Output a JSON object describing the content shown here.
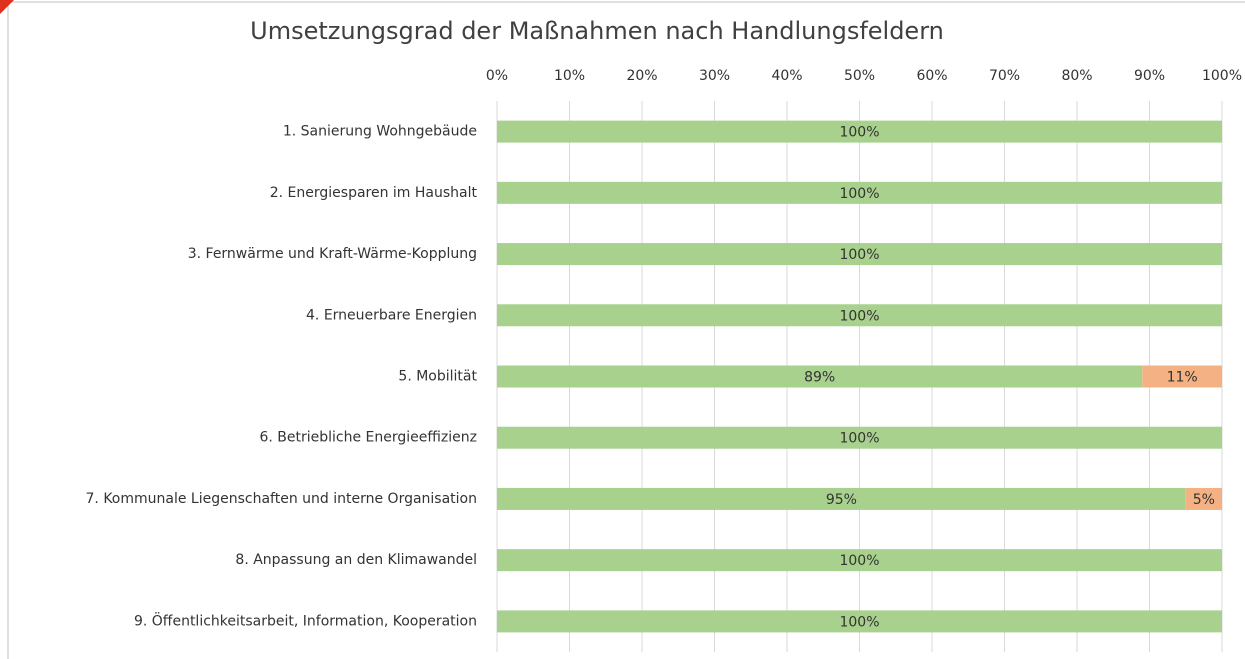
{
  "chart_data": {
    "type": "stacked_bar_horizontal",
    "title": "Umsetzungsgrad der Maßnahmen nach Handlungsfeldern",
    "categories": [
      "1. Sanierung Wohngebäude",
      "2. Energiesparen im Haushalt",
      "3. Fernwärme und Kraft-Wärme-Kopplung",
      "4. Erneuerbare Energien",
      "5. Mobilität",
      "6. Betriebliche Energieeffizienz",
      "7. Kommunale Liegenschaften und interne Organisation",
      "8. Anpassung an den Klimawandel",
      "9. Öffentlichkeitsarbeit, Information, Kooperation"
    ],
    "series": [
      {
        "color": "#a9d18e",
        "values": [
          100,
          100,
          100,
          100,
          89,
          100,
          95,
          100,
          100
        ],
        "value_labels": [
          "100%",
          "100%",
          "100%",
          "100%",
          "89%",
          "100%",
          "95%",
          "100%",
          "100%"
        ]
      },
      {
        "color": "#f4b183",
        "values": [
          null,
          null,
          null,
          null,
          11,
          null,
          5,
          null,
          null
        ],
        "value_labels": [
          null,
          null,
          null,
          null,
          "11%",
          null,
          "5%",
          null,
          null
        ]
      }
    ],
    "xlim": [
      0,
      100
    ],
    "xticks": [
      {
        "value": 0,
        "label": "0%"
      },
      {
        "value": 10,
        "label": "10%"
      },
      {
        "value": 20,
        "label": "20%"
      },
      {
        "value": 30,
        "label": "30%"
      },
      {
        "value": 40,
        "label": "40%"
      },
      {
        "value": 50,
        "label": "50%"
      },
      {
        "value": 60,
        "label": "60%"
      },
      {
        "value": 70,
        "label": "70%"
      },
      {
        "value": 80,
        "label": "80%"
      },
      {
        "value": 90,
        "label": "90%"
      },
      {
        "value": 100,
        "label": "100%"
      }
    ],
    "grid": true
  }
}
